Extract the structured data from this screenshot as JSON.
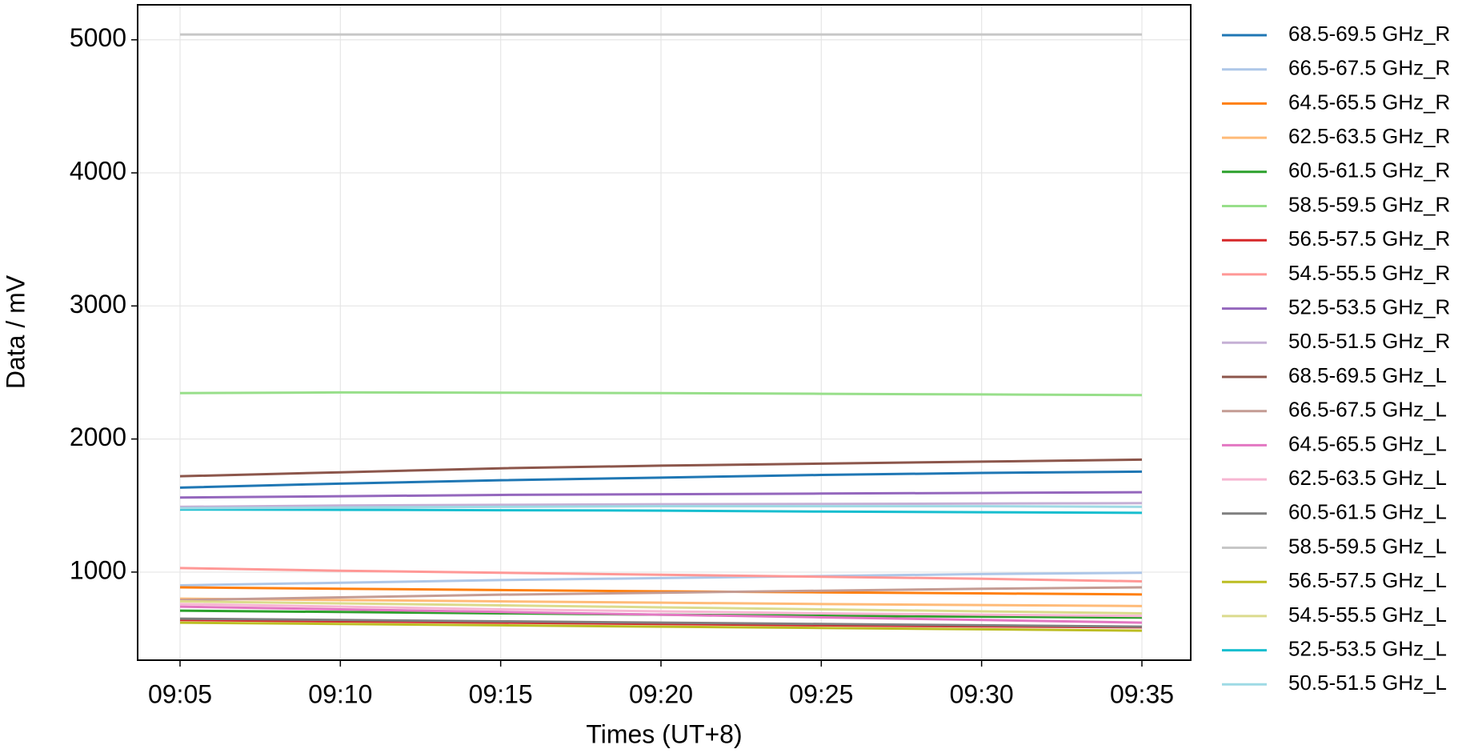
{
  "chart_data": {
    "type": "line",
    "x_label": "Times (UT+8)",
    "y_label": "Data / mV",
    "categories": [
      "09:05",
      "09:10",
      "09:15",
      "09:20",
      "09:25",
      "09:30",
      "09:35"
    ],
    "ylim": [
      338,
      5263
    ],
    "yticks": [
      1000,
      2000,
      3000,
      4000,
      5000
    ],
    "grid": true,
    "legend": "outside-right",
    "series": [
      {
        "name": "68.5-69.5 GHz_R",
        "color": "#1f77b4",
        "values": [
          1635,
          1665,
          1690,
          1710,
          1730,
          1745,
          1755
        ]
      },
      {
        "name": "66.5-67.5 GHz_R",
        "color": "#aec7e8",
        "values": [
          900,
          920,
          940,
          955,
          970,
          985,
          995
        ]
      },
      {
        "name": "64.5-65.5 GHz_R",
        "color": "#ff7f0e",
        "values": [
          885,
          875,
          865,
          855,
          848,
          840,
          832
        ]
      },
      {
        "name": "62.5-63.5 GHz_R",
        "color": "#ffbb78",
        "values": [
          800,
          790,
          780,
          770,
          760,
          752,
          745
        ]
      },
      {
        "name": "60.5-61.5 GHz_R",
        "color": "#2ca02c",
        "values": [
          710,
          700,
          690,
          680,
          672,
          665,
          658
        ]
      },
      {
        "name": "58.5-59.5 GHz_R",
        "color": "#98df8a",
        "values": [
          2345,
          2350,
          2348,
          2345,
          2340,
          2335,
          2330
        ]
      },
      {
        "name": "56.5-57.5 GHz_R",
        "color": "#d62728",
        "values": [
          640,
          630,
          620,
          610,
          600,
          592,
          585
        ]
      },
      {
        "name": "54.5-55.5 GHz_R",
        "color": "#ff9896",
        "values": [
          1030,
          1010,
          995,
          980,
          965,
          950,
          930
        ]
      },
      {
        "name": "52.5-53.5 GHz_R",
        "color": "#9467bd",
        "values": [
          1560,
          1570,
          1580,
          1585,
          1590,
          1595,
          1600
        ]
      },
      {
        "name": "50.5-51.5 GHz_R",
        "color": "#c5b0d5",
        "values": [
          1490,
          1500,
          1505,
          1510,
          1512,
          1515,
          1518
        ]
      },
      {
        "name": "68.5-69.5 GHz_L",
        "color": "#8c564b",
        "values": [
          1720,
          1750,
          1780,
          1800,
          1815,
          1830,
          1845
        ]
      },
      {
        "name": "66.5-67.5 GHz_L",
        "color": "#c49c94",
        "values": [
          790,
          810,
          830,
          845,
          860,
          875,
          885
        ]
      },
      {
        "name": "64.5-65.5 GHz_L",
        "color": "#e377c2",
        "values": [
          740,
          720,
          700,
          680,
          660,
          640,
          620
        ]
      },
      {
        "name": "62.5-63.5 GHz_L",
        "color": "#f7b6d2",
        "values": [
          760,
          740,
          720,
          705,
          690,
          680,
          670
        ]
      },
      {
        "name": "60.5-61.5 GHz_L",
        "color": "#7f7f7f",
        "values": [
          650,
          640,
          630,
          620,
          610,
          600,
          590
        ]
      },
      {
        "name": "58.5-59.5 GHz_L",
        "color": "#c7c7c7",
        "values": [
          5040,
          5040,
          5040,
          5040,
          5040,
          5040,
          5040
        ]
      },
      {
        "name": "56.5-57.5 GHz_L",
        "color": "#bcbd22",
        "values": [
          620,
          610,
          600,
          590,
          580,
          570,
          560
        ]
      },
      {
        "name": "54.5-55.5 GHz_L",
        "color": "#dbdb8d",
        "values": [
          780,
          765,
          750,
          735,
          720,
          705,
          690
        ]
      },
      {
        "name": "52.5-53.5 GHz_L",
        "color": "#17becf",
        "values": [
          1470,
          1468,
          1465,
          1462,
          1455,
          1450,
          1445
        ]
      },
      {
        "name": "50.5-51.5 GHz_L",
        "color": "#9edae5",
        "values": [
          1480,
          1485,
          1490,
          1495,
          1495,
          1495,
          1490
        ]
      }
    ]
  }
}
